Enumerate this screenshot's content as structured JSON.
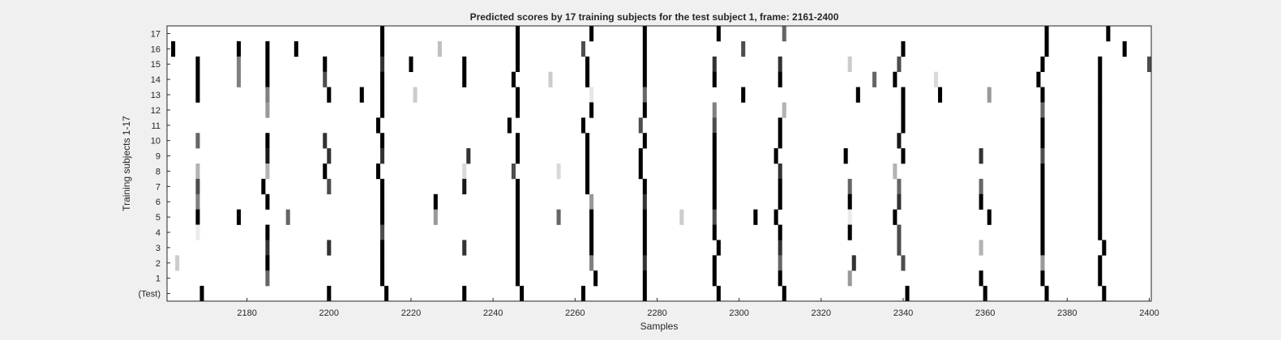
{
  "chart_data": {
    "type": "heatmap",
    "title": "Predicted scores by 17 training subjects for the test subject 1, frame: 2161-2400",
    "xlabel": "Samples",
    "ylabel": "Training subjects 1-17",
    "xlim": [
      2161,
      2400
    ],
    "xticks": [
      2180,
      2200,
      2220,
      2240,
      2260,
      2280,
      2300,
      2320,
      2340,
      2360,
      2380,
      2400
    ],
    "rows": [
      "17",
      "16",
      "15",
      "14",
      "13",
      "12",
      "11",
      "10",
      "9",
      "8",
      "7",
      "6",
      "5",
      "4",
      "3",
      "2",
      "1",
      "(Test)"
    ],
    "colormap": "gray-inverted (0 = white, 1 = black)",
    "cells": [
      {
        "row": "17",
        "marks": [
          [
            2213,
            1
          ],
          [
            2246,
            1
          ],
          [
            2264,
            1
          ],
          [
            2277,
            1
          ],
          [
            2295,
            1
          ],
          [
            2311,
            0.6
          ],
          [
            2375,
            1
          ],
          [
            2390,
            1
          ]
        ]
      },
      {
        "row": "16",
        "marks": [
          [
            2162,
            1
          ],
          [
            2178,
            1
          ],
          [
            2185,
            1
          ],
          [
            2192,
            1
          ],
          [
            2213,
            1
          ],
          [
            2227,
            0.25
          ],
          [
            2246,
            1
          ],
          [
            2262,
            0.7
          ],
          [
            2277,
            1
          ],
          [
            2301,
            0.7
          ],
          [
            2340,
            1
          ],
          [
            2375,
            1
          ],
          [
            2394,
            1
          ]
        ]
      },
      {
        "row": "15",
        "marks": [
          [
            2168,
            1
          ],
          [
            2178,
            0.5
          ],
          [
            2185,
            1
          ],
          [
            2199,
            1
          ],
          [
            2213,
            0.8
          ],
          [
            2220,
            1
          ],
          [
            2233,
            1
          ],
          [
            2246,
            1
          ],
          [
            2263,
            1
          ],
          [
            2277,
            1
          ],
          [
            2294,
            0.8
          ],
          [
            2310,
            0.8
          ],
          [
            2327,
            0.2
          ],
          [
            2339,
            0.7
          ],
          [
            2374,
            1
          ],
          [
            2388,
            1
          ],
          [
            2400,
            0.7
          ]
        ]
      },
      {
        "row": "14",
        "marks": [
          [
            2168,
            1
          ],
          [
            2178,
            0.5
          ],
          [
            2185,
            1
          ],
          [
            2199,
            0.7
          ],
          [
            2213,
            1
          ],
          [
            2233,
            1
          ],
          [
            2245,
            1
          ],
          [
            2254,
            0.2
          ],
          [
            2263,
            1
          ],
          [
            2277,
            1
          ],
          [
            2294,
            1
          ],
          [
            2310,
            1
          ],
          [
            2333,
            0.6
          ],
          [
            2338,
            1
          ],
          [
            2348,
            0.15
          ],
          [
            2373,
            1
          ],
          [
            2388,
            1
          ]
        ]
      },
      {
        "row": "13",
        "marks": [
          [
            2168,
            1
          ],
          [
            2185,
            0.5
          ],
          [
            2200,
            1
          ],
          [
            2208,
            1
          ],
          [
            2213,
            1
          ],
          [
            2221,
            0.2
          ],
          [
            2246,
            1
          ],
          [
            2264,
            0.1
          ],
          [
            2277,
            0.6
          ],
          [
            2301,
            1
          ],
          [
            2329,
            1
          ],
          [
            2340,
            1
          ],
          [
            2349,
            1
          ],
          [
            2361,
            0.4
          ],
          [
            2374,
            1
          ],
          [
            2388,
            1
          ]
        ]
      },
      {
        "row": "12",
        "marks": [
          [
            2185,
            0.4
          ],
          [
            2213,
            1
          ],
          [
            2246,
            1
          ],
          [
            2264,
            1
          ],
          [
            2277,
            1
          ],
          [
            2294,
            0.5
          ],
          [
            2311,
            0.3
          ],
          [
            2340,
            1
          ],
          [
            2374,
            0.6
          ],
          [
            2388,
            1
          ]
        ]
      },
      {
        "row": "11",
        "marks": [
          [
            2212,
            1
          ],
          [
            2244,
            1
          ],
          [
            2262,
            1
          ],
          [
            2276,
            0.7
          ],
          [
            2294,
            0.7
          ],
          [
            2310,
            1
          ],
          [
            2340,
            1
          ],
          [
            2374,
            1
          ],
          [
            2388,
            1
          ]
        ]
      },
      {
        "row": "10",
        "marks": [
          [
            2168,
            0.6
          ],
          [
            2185,
            1
          ],
          [
            2199,
            0.8
          ],
          [
            2213,
            1
          ],
          [
            2246,
            1
          ],
          [
            2263,
            1
          ],
          [
            2277,
            1
          ],
          [
            2294,
            1
          ],
          [
            2310,
            1
          ],
          [
            2339,
            0.9
          ],
          [
            2374,
            1
          ],
          [
            2388,
            1
          ]
        ]
      },
      {
        "row": "9",
        "marks": [
          [
            2185,
            0.9
          ],
          [
            2200,
            0.8
          ],
          [
            2213,
            0.8
          ],
          [
            2234,
            0.8
          ],
          [
            2246,
            1
          ],
          [
            2263,
            1
          ],
          [
            2276,
            1
          ],
          [
            2294,
            1
          ],
          [
            2309,
            1
          ],
          [
            2326,
            1
          ],
          [
            2340,
            1
          ],
          [
            2359,
            0.8
          ],
          [
            2374,
            0.7
          ],
          [
            2388,
            1
          ]
        ]
      },
      {
        "row": "8",
        "marks": [
          [
            2168,
            0.3
          ],
          [
            2185,
            0.3
          ],
          [
            2199,
            1
          ],
          [
            2212,
            1
          ],
          [
            2233,
            0.15
          ],
          [
            2245,
            0.7
          ],
          [
            2256,
            0.15
          ],
          [
            2263,
            1
          ],
          [
            2276,
            1
          ],
          [
            2294,
            1
          ],
          [
            2310,
            0.8
          ],
          [
            2338,
            0.3
          ],
          [
            2374,
            1
          ],
          [
            2388,
            1
          ]
        ]
      },
      {
        "row": "7",
        "marks": [
          [
            2168,
            0.7
          ],
          [
            2184,
            1
          ],
          [
            2200,
            0.7
          ],
          [
            2213,
            1
          ],
          [
            2233,
            0.9
          ],
          [
            2246,
            1
          ],
          [
            2263,
            1
          ],
          [
            2277,
            1
          ],
          [
            2294,
            1
          ],
          [
            2310,
            1
          ],
          [
            2327,
            0.6
          ],
          [
            2339,
            0.6
          ],
          [
            2359,
            0.6
          ],
          [
            2374,
            1
          ],
          [
            2388,
            1
          ]
        ]
      },
      {
        "row": "6",
        "marks": [
          [
            2168,
            0.5
          ],
          [
            2185,
            1
          ],
          [
            2213,
            1
          ],
          [
            2226,
            1
          ],
          [
            2246,
            1
          ],
          [
            2264,
            0.4
          ],
          [
            2277,
            0.8
          ],
          [
            2294,
            1
          ],
          [
            2310,
            1
          ],
          [
            2327,
            1
          ],
          [
            2339,
            0.8
          ],
          [
            2359,
            1
          ],
          [
            2374,
            1
          ],
          [
            2388,
            1
          ]
        ]
      },
      {
        "row": "5",
        "marks": [
          [
            2168,
            1
          ],
          [
            2178,
            1
          ],
          [
            2190,
            0.6
          ],
          [
            2213,
            1
          ],
          [
            2226,
            0.4
          ],
          [
            2246,
            1
          ],
          [
            2256,
            0.6
          ],
          [
            2264,
            1
          ],
          [
            2277,
            1
          ],
          [
            2286,
            0.2
          ],
          [
            2294,
            0.7
          ],
          [
            2304,
            1
          ],
          [
            2309,
            1
          ],
          [
            2327,
            0.08
          ],
          [
            2338,
            1
          ],
          [
            2361,
            1
          ],
          [
            2374,
            1
          ],
          [
            2388,
            1
          ]
        ]
      },
      {
        "row": "4",
        "marks": [
          [
            2168,
            0.08
          ],
          [
            2185,
            1
          ],
          [
            2213,
            0.7
          ],
          [
            2246,
            1
          ],
          [
            2264,
            1
          ],
          [
            2277,
            1
          ],
          [
            2294,
            1
          ],
          [
            2310,
            1
          ],
          [
            2327,
            1
          ],
          [
            2339,
            0.7
          ],
          [
            2374,
            1
          ],
          [
            2388,
            1
          ]
        ]
      },
      {
        "row": "3",
        "marks": [
          [
            2185,
            0.8
          ],
          [
            2200,
            0.8
          ],
          [
            2213,
            1
          ],
          [
            2233,
            0.8
          ],
          [
            2246,
            1
          ],
          [
            2264,
            1
          ],
          [
            2277,
            1
          ],
          [
            2295,
            1
          ],
          [
            2310,
            0.8
          ],
          [
            2339,
            0.7
          ],
          [
            2359,
            0.3
          ],
          [
            2374,
            1
          ],
          [
            2389,
            1
          ]
        ]
      },
      {
        "row": "2",
        "marks": [
          [
            2163,
            0.2
          ],
          [
            2185,
            1
          ],
          [
            2213,
            1
          ],
          [
            2246,
            1
          ],
          [
            2264,
            0.5
          ],
          [
            2277,
            0.8
          ],
          [
            2294,
            1
          ],
          [
            2310,
            0.6
          ],
          [
            2328,
            0.8
          ],
          [
            2340,
            0.7
          ],
          [
            2374,
            0.4
          ],
          [
            2388,
            1
          ]
        ]
      },
      {
        "row": "1",
        "marks": [
          [
            2185,
            0.6
          ],
          [
            2213,
            1
          ],
          [
            2246,
            1
          ],
          [
            2265,
            1
          ],
          [
            2277,
            1
          ],
          [
            2294,
            1
          ],
          [
            2310,
            1
          ],
          [
            2327,
            0.4
          ],
          [
            2359,
            1
          ],
          [
            2374,
            1
          ],
          [
            2388,
            1
          ]
        ]
      },
      {
        "row": "(Test)",
        "marks": [
          [
            2169,
            1
          ],
          [
            2200,
            1
          ],
          [
            2214,
            1
          ],
          [
            2233,
            1
          ],
          [
            2247,
            1
          ],
          [
            2262,
            1
          ],
          [
            2277,
            1
          ],
          [
            2295,
            1
          ],
          [
            2311,
            1
          ],
          [
            2341,
            1
          ],
          [
            2360,
            1
          ],
          [
            2375,
            1
          ],
          [
            2389,
            1
          ]
        ]
      }
    ],
    "grid": false,
    "legend": "none"
  }
}
